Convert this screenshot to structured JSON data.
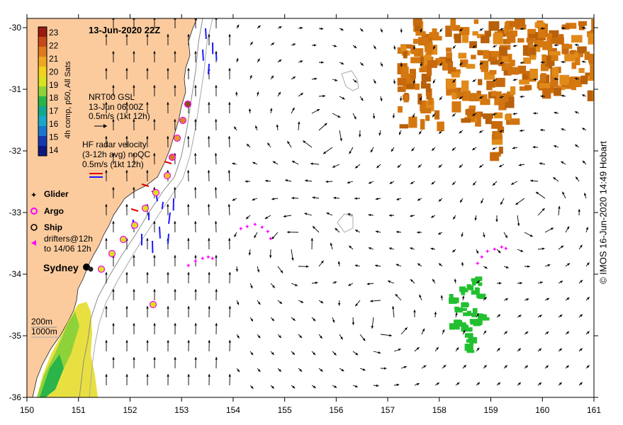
{
  "map": {
    "title": "13-Jun-2020 22Z",
    "lon_ticks": [
      "150",
      "151",
      "152",
      "153",
      "154",
      "155",
      "156",
      "157",
      "158",
      "159",
      "160",
      "161"
    ],
    "lat_ticks": [
      "-30",
      "-31",
      "-32",
      "-33",
      "-34",
      "-35",
      "-36"
    ],
    "lon_range": [
      150,
      161
    ],
    "lat_range": [
      -36,
      -29.85
    ],
    "land_color": "#fbcb9e",
    "sst_warm_color": "#d5780f",
    "glider_color": "#ff00ff",
    "hf_radar_color": "#1a1aff"
  },
  "colorbar": {
    "ticks": [
      "23",
      "22",
      "21",
      "20",
      "19",
      "18",
      "17",
      "16",
      "15",
      "14"
    ],
    "label": "4h comp, p50, All Sats",
    "colors": [
      "#9a1a10",
      "#c8481a",
      "#e07a1e",
      "#f0a820",
      "#f2d21a",
      "#d8e21e",
      "#8ed23a",
      "#2ab44a",
      "#10a890",
      "#18a8c8",
      "#1878d0",
      "#1838b0",
      "#101880"
    ]
  },
  "legend": {
    "gsl_title": "NRT00 GSL",
    "gsl_time": "13-Jun 06:00Z",
    "gsl_scale": "0.5m/s (1kt 12h)",
    "hf_title": "HF radar velocity",
    "hf_detail": "(3-12h avg) noQC",
    "hf_scale": "0.5m/s (1kt 12h)",
    "glider": "Glider",
    "argo": "Argo",
    "ship": "Ship",
    "drifters_line1": "drifters@12h",
    "drifters_line2": "to 14/06 12h",
    "city": "Sydney",
    "depth_200": "200m",
    "depth_1000": "1000m"
  },
  "credit": "© IMOS 16-Jun-2020 14:49 Hobart"
}
